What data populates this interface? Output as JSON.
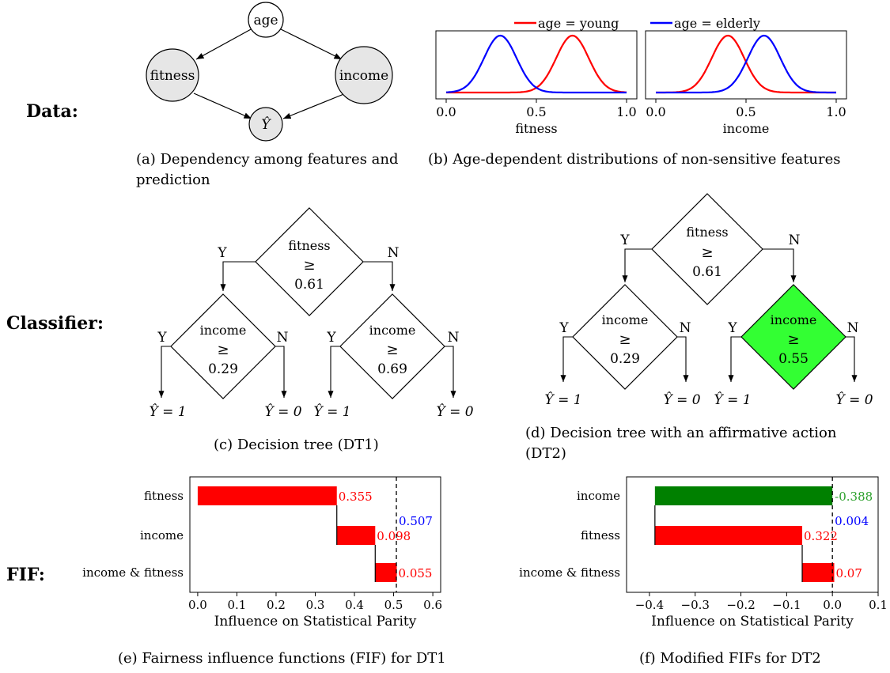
{
  "row_labels": {
    "data": "Data:",
    "classifier": "Classifier:",
    "fif": "FIF:"
  },
  "captions": {
    "a": "(a) Dependency among features and prediction",
    "b": "(b) Age-dependent distributions of non-sensitive features",
    "c": "(c) Decision tree (DT1)",
    "d": "(d) Decision tree with an affirmative action (DT2)",
    "e": "(e) Fairness influence functions (FIF) for DT1",
    "f": "(f) Modified FIFs for DT2"
  },
  "graph": {
    "nodes": {
      "age": "age",
      "fitness": "fitness",
      "income": "income",
      "yhat": "Ŷ"
    }
  },
  "dist": {
    "legend": {
      "young": "age = young",
      "elderly": "age = elderly"
    },
    "colors": {
      "young": "#ff0000",
      "elderly": "#0000ff"
    },
    "ticks": [
      "0.0",
      "0.5",
      "1.0"
    ],
    "fitness_label": "fitness",
    "income_label": "income"
  },
  "tree_labels": {
    "yes": "Y",
    "no": "N",
    "ge": "≥",
    "leaf1": "Ŷ = 1",
    "leaf0": "Ŷ = 0"
  },
  "dt1": {
    "root": {
      "feature": "fitness",
      "threshold": "0.61"
    },
    "left": {
      "feature": "income",
      "threshold": "0.29"
    },
    "right": {
      "feature": "income",
      "threshold": "0.69"
    }
  },
  "dt2": {
    "root": {
      "feature": "fitness",
      "threshold": "0.61"
    },
    "left": {
      "feature": "income",
      "threshold": "0.29"
    },
    "right": {
      "feature": "income",
      "threshold": "0.55",
      "highlight": "#33ff33"
    }
  },
  "chart_data": [
    {
      "type": "line",
      "xlabel": "fitness",
      "xlim": [
        0,
        1
      ],
      "series": [
        {
          "name": "age = young",
          "color": "#ff0000",
          "mean": 0.7,
          "sd": 0.09
        },
        {
          "name": "age = elderly",
          "color": "#0000ff",
          "mean": 0.3,
          "sd": 0.09
        }
      ]
    },
    {
      "type": "line",
      "xlabel": "income",
      "xlim": [
        0,
        1
      ],
      "series": [
        {
          "name": "age = young",
          "color": "#ff0000",
          "mean": 0.4,
          "sd": 0.09
        },
        {
          "name": "age = elderly",
          "color": "#0000ff",
          "mean": 0.6,
          "sd": 0.09
        }
      ]
    },
    {
      "type": "bar",
      "orientation": "horizontal",
      "xlabel": "Influence on Statistical Parity",
      "xlim": [
        -0.02,
        0.62
      ],
      "xticks": [
        "0.0",
        "0.1",
        "0.2",
        "0.3",
        "0.4",
        "0.5",
        "0.6"
      ],
      "categories": [
        "fitness",
        "income",
        "income & fitness"
      ],
      "values": [
        0.355,
        0.098,
        0.055
      ],
      "value_labels": [
        "0.355",
        "0.098",
        "0.055"
      ],
      "colors": [
        "#ff0000",
        "#ff0000",
        "#ff0000"
      ],
      "label_colors": [
        "#ff0000",
        "#ff0000",
        "#ff0000"
      ],
      "total": 0.507,
      "total_label": "0.507"
    },
    {
      "type": "bar",
      "orientation": "horizontal",
      "xlabel": "Influence on Statistical Parity",
      "xlim": [
        -0.45,
        0.1
      ],
      "xticks": [
        "−0.4",
        "−0.3",
        "−0.2",
        "−0.1",
        "0.0",
        "0.1"
      ],
      "categories": [
        "income",
        "fitness",
        "income & fitness"
      ],
      "values": [
        -0.388,
        0.322,
        0.07
      ],
      "value_labels": [
        "-0.388",
        "0.322",
        "0.07"
      ],
      "colors": [
        "#008000",
        "#ff0000",
        "#ff0000"
      ],
      "label_colors": [
        "#2ca02c",
        "#ff0000",
        "#ff0000"
      ],
      "total": 0.004,
      "total_label": "0.004"
    }
  ]
}
